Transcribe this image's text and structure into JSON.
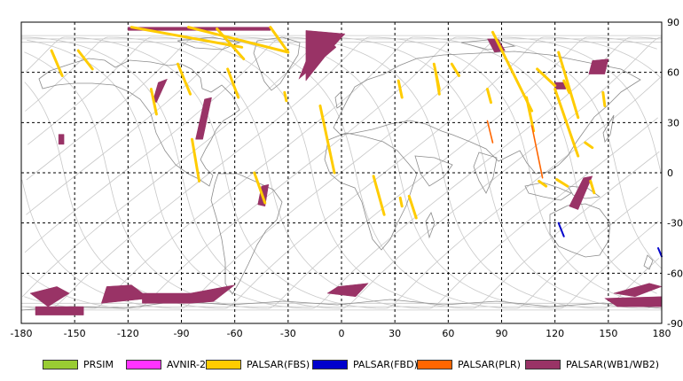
{
  "map": {
    "lon_ticks": [
      "-180",
      "-150",
      "-120",
      "-90",
      "-60",
      "-30",
      "0",
      "30",
      "60",
      "90",
      "120",
      "150",
      "180"
    ],
    "lat_ticks": [
      "90",
      "60",
      "30",
      "0",
      "-30",
      "-60",
      "-90"
    ],
    "lon_values": [
      -180,
      -150,
      -120,
      -90,
      -60,
      -30,
      0,
      30,
      60,
      90,
      120,
      150,
      180
    ],
    "lat_values": [
      90,
      60,
      30,
      0,
      -30,
      -60,
      -90
    ]
  },
  "legend": [
    {
      "label": "PRSIM",
      "color": "#99cc33"
    },
    {
      "label": "AVNIR-2",
      "color": "#ff33ff"
    },
    {
      "label": "PALSAR(FBS)",
      "color": "#ffcc00"
    },
    {
      "label": "PALSAR(FBD)",
      "color": "#0000cc"
    },
    {
      "label": "PALSAR(PLR)",
      "color": "#ff6600"
    },
    {
      "label": "PALSAR(WB1/WB2)",
      "color": "#993366"
    }
  ],
  "colors": {
    "fbs": "#ffcc00",
    "fbd": "#0000cc",
    "plr": "#ff6600",
    "wb": "#993366",
    "orbit": "#c8c8c8",
    "coast": "#8c8c8c",
    "grid": "#000000"
  },
  "coverage": {
    "wb_quads": [
      [
        [
          -175,
          -72
        ],
        [
          -160,
          -68
        ],
        [
          -153,
          -72
        ],
        [
          -165,
          -80
        ]
      ],
      [
        [
          -172,
          -80
        ],
        [
          -145,
          -80
        ],
        [
          -145,
          -85
        ],
        [
          -172,
          -85
        ]
      ],
      [
        [
          -132,
          -68
        ],
        [
          -118,
          -67
        ],
        [
          -108,
          -75
        ],
        [
          -135,
          -78
        ]
      ],
      [
        [
          -112,
          -72
        ],
        [
          -85,
          -72
        ],
        [
          -85,
          -78
        ],
        [
          -112,
          -78
        ]
      ],
      [
        [
          -85,
          -72
        ],
        [
          -60,
          -67
        ],
        [
          -72,
          -77
        ],
        [
          -85,
          -78
        ]
      ],
      [
        [
          -2,
          -68
        ],
        [
          15,
          -66
        ],
        [
          8,
          -74
        ],
        [
          -8,
          -72
        ]
      ],
      [
        [
          153,
          -72
        ],
        [
          173,
          -66
        ],
        [
          180,
          -68
        ],
        [
          165,
          -74
        ]
      ],
      [
        [
          148,
          -75
        ],
        [
          180,
          -74
        ],
        [
          180,
          -80
        ],
        [
          155,
          -80
        ]
      ],
      [
        [
          -120,
          87
        ],
        [
          -40,
          87
        ],
        [
          -40,
          85
        ],
        [
          -120,
          85
        ]
      ],
      [
        [
          -20,
          85
        ],
        [
          2,
          83
        ],
        [
          -5,
          75
        ],
        [
          -20,
          55
        ]
      ],
      [
        [
          -24,
          56
        ],
        [
          -18,
          72
        ],
        [
          -8,
          80
        ],
        [
          -3,
          75
        ]
      ],
      [
        [
          -103,
          54
        ],
        [
          -98,
          56
        ],
        [
          -104,
          42
        ],
        [
          -106,
          43
        ]
      ],
      [
        [
          -77,
          44
        ],
        [
          -73,
          45
        ],
        [
          -78,
          20
        ],
        [
          -82,
          20
        ]
      ],
      [
        [
          -45,
          -8
        ],
        [
          -41,
          -7
        ],
        [
          -43,
          -20
        ],
        [
          -47,
          -19
        ]
      ],
      [
        [
          -159,
          23
        ],
        [
          -156,
          23
        ],
        [
          -156,
          17
        ],
        [
          -159,
          17
        ]
      ],
      [
        [
          82,
          80
        ],
        [
          88,
          80
        ],
        [
          92,
          73
        ],
        [
          86,
          72
        ]
      ],
      [
        [
          141,
          67
        ],
        [
          150,
          68
        ],
        [
          148,
          59
        ],
        [
          139,
          59
        ]
      ],
      [
        [
          120,
          54
        ],
        [
          126,
          54
        ],
        [
          126,
          50
        ],
        [
          120,
          50
        ]
      ],
      [
        [
          136,
          -3
        ],
        [
          141,
          -2
        ],
        [
          133,
          -22
        ],
        [
          128,
          -20
        ]
      ]
    ],
    "fbs_lines": [
      [
        [
          -163,
          73
        ],
        [
          -157,
          58
        ]
      ],
      [
        -150,
        72
      ],
      [
        [
          -118,
          87
        ],
        [
          -56,
          75
        ]
      ],
      [
        [
          -86,
          87
        ],
        [
          -30,
          72
        ]
      ],
      [
        [
          -70,
          86
        ],
        [
          -55,
          68
        ]
      ],
      [
        [
          -40,
          87
        ],
        [
          -30,
          72
        ]
      ],
      [
        [
          -148,
          73
        ],
        [
          -140,
          62
        ]
      ],
      [
        [
          -92,
          65
        ],
        [
          -85,
          47
        ]
      ],
      [
        [
          -107,
          50
        ],
        [
          -104,
          35
        ]
      ],
      [
        [
          -64,
          62
        ],
        [
          -58,
          45
        ]
      ],
      [
        [
          -84,
          20
        ],
        [
          -80,
          -5
        ]
      ],
      [
        [
          -49,
          0
        ],
        [
          -43,
          -18
        ]
      ],
      [
        [
          -32,
          48
        ],
        [
          -31,
          43
        ]
      ],
      [
        [
          -12,
          40
        ],
        [
          -4,
          0
        ]
      ],
      [
        [
          18,
          -2
        ],
        [
          24,
          -25
        ]
      ],
      [
        [
          38,
          -14
        ],
        [
          42,
          -27
        ]
      ],
      [
        [
          33,
          -15
        ],
        [
          34,
          -20
        ]
      ],
      [
        [
          32,
          55
        ],
        [
          34,
          45
        ]
      ],
      [
        [
          52,
          65
        ],
        [
          55,
          50
        ]
      ],
      [
        [
          53,
          60
        ],
        [
          55,
          47
        ]
      ],
      [
        [
          62,
          65
        ],
        [
          66,
          58
        ]
      ],
      [
        [
          82,
          50
        ],
        [
          84,
          42
        ]
      ],
      [
        [
          85,
          84
        ],
        [
          107,
          37
        ]
      ],
      [
        [
          110,
          62
        ],
        [
          120,
          52
        ]
      ],
      [
        [
          122,
          72
        ],
        [
          133,
          33
        ]
      ],
      [
        [
          125,
          55
        ],
        [
          128,
          48
        ]
      ],
      [
        [
          147,
          48
        ],
        [
          148,
          40
        ]
      ],
      [
        [
          140,
          -5
        ],
        [
          142,
          -12
        ]
      ],
      [
        [
          121,
          -4
        ],
        [
          127,
          -8
        ]
      ],
      [
        [
          111,
          -5
        ],
        [
          115,
          -8
        ]
      ],
      [
        [
          120,
          50
        ],
        [
          133,
          10
        ]
      ],
      [
        [
          104,
          45
        ],
        [
          108,
          25
        ]
      ],
      [
        [
          137,
          18
        ],
        [
          141,
          15
        ]
      ]
    ],
    "plr_lines": [
      [
        [
          82,
          31
        ],
        [
          85,
          18
        ]
      ],
      [
        [
          107,
          28
        ],
        [
          113,
          -3
        ]
      ]
    ],
    "fbd_lines": [
      [
        [
          122,
          -30
        ],
        [
          125,
          -38
        ]
      ],
      [
        [
          178,
          -45
        ],
        [
          180,
          -50
        ]
      ]
    ]
  }
}
